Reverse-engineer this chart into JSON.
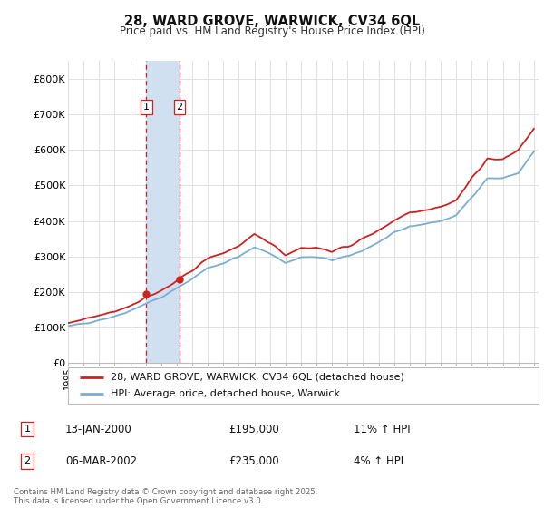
{
  "title": "28, WARD GROVE, WARWICK, CV34 6QL",
  "subtitle": "Price paid vs. HM Land Registry's House Price Index (HPI)",
  "ylim": [
    0,
    850000
  ],
  "yticks": [
    0,
    100000,
    200000,
    300000,
    400000,
    500000,
    600000,
    700000,
    800000
  ],
  "ytick_labels": [
    "£0",
    "£100K",
    "£200K",
    "£300K",
    "£400K",
    "£500K",
    "£600K",
    "£700K",
    "£800K"
  ],
  "legend_line1": "28, WARD GROVE, WARWICK, CV34 6QL (detached house)",
  "legend_line2": "HPI: Average price, detached house, Warwick",
  "transaction1_date": "13-JAN-2000",
  "transaction1_price": "£195,000",
  "transaction1_hpi": "11% ↑ HPI",
  "transaction2_date": "06-MAR-2002",
  "transaction2_price": "£235,000",
  "transaction2_hpi": "4% ↑ HPI",
  "footer": "Contains HM Land Registry data © Crown copyright and database right 2025.\nThis data is licensed under the Open Government Licence v3.0.",
  "red_color": "#cc2222",
  "blue_color": "#7aadd4",
  "shade_color": "#d0e0f0",
  "transaction1_x": 2000.04,
  "transaction2_x": 2002.18,
  "bg_color": "#ffffff",
  "grid_color": "#e0e0e0",
  "hpi_years": [
    1995.0,
    1995.1,
    1995.2,
    1995.3,
    1995.4,
    1995.5,
    1995.6,
    1995.7,
    1995.8,
    1995.9,
    1996.0,
    1996.1,
    1996.2,
    1996.3,
    1996.4,
    1996.5,
    1996.6,
    1996.7,
    1996.8,
    1996.9,
    1997.0,
    1997.1,
    1997.2,
    1997.3,
    1997.4,
    1997.5,
    1997.6,
    1997.7,
    1997.8,
    1997.9,
    1998.0,
    1998.1,
    1998.2,
    1998.3,
    1998.4,
    1998.5,
    1998.6,
    1998.7,
    1998.8,
    1998.9,
    1999.0,
    1999.1,
    1999.2,
    1999.3,
    1999.4,
    1999.5,
    1999.6,
    1999.7,
    1999.8,
    1999.9,
    2000.0,
    2000.1,
    2000.2,
    2000.3,
    2000.4,
    2000.5,
    2000.6,
    2000.7,
    2000.8,
    2000.9,
    2001.0,
    2001.1,
    2001.2,
    2001.3,
    2001.4,
    2001.5,
    2001.6,
    2001.7,
    2001.8,
    2001.9,
    2002.0,
    2002.1,
    2002.2,
    2002.3,
    2002.4,
    2002.5,
    2002.6,
    2002.7,
    2002.8,
    2002.9,
    2003.0,
    2003.1,
    2003.2,
    2003.3,
    2003.4,
    2003.5,
    2003.6,
    2003.7,
    2003.8,
    2003.9,
    2004.0,
    2004.1,
    2004.2,
    2004.3,
    2004.4,
    2004.5,
    2004.6,
    2004.7,
    2004.8,
    2004.9,
    2005.0,
    2005.1,
    2005.2,
    2005.3,
    2005.4,
    2005.5,
    2005.6,
    2005.7,
    2005.8,
    2005.9,
    2006.0,
    2006.1,
    2006.2,
    2006.3,
    2006.4,
    2006.5,
    2006.6,
    2006.7,
    2006.8,
    2006.9,
    2007.0,
    2007.1,
    2007.2,
    2007.3,
    2007.4,
    2007.5,
    2007.6,
    2007.7,
    2007.8,
    2007.9,
    2008.0,
    2008.1,
    2008.2,
    2008.3,
    2008.4,
    2008.5,
    2008.6,
    2008.7,
    2008.8,
    2008.9,
    2009.0,
    2009.1,
    2009.2,
    2009.3,
    2009.4,
    2009.5,
    2009.6,
    2009.7,
    2009.8,
    2009.9,
    2010.0,
    2010.1,
    2010.2,
    2010.3,
    2010.4,
    2010.5,
    2010.6,
    2010.7,
    2010.8,
    2010.9,
    2011.0,
    2011.1,
    2011.2,
    2011.3,
    2011.4,
    2011.5,
    2011.6,
    2011.7,
    2011.8,
    2011.9,
    2012.0,
    2012.1,
    2012.2,
    2012.3,
    2012.4,
    2012.5,
    2012.6,
    2012.7,
    2012.8,
    2012.9,
    2013.0,
    2013.1,
    2013.2,
    2013.3,
    2013.4,
    2013.5,
    2013.6,
    2013.7,
    2013.8,
    2013.9,
    2014.0,
    2014.1,
    2014.2,
    2014.3,
    2014.4,
    2014.5,
    2014.6,
    2014.7,
    2014.8,
    2014.9,
    2015.0,
    2015.1,
    2015.2,
    2015.3,
    2015.4,
    2015.5,
    2015.6,
    2015.7,
    2015.8,
    2015.9,
    2016.0,
    2016.1,
    2016.2,
    2016.3,
    2016.4,
    2016.5,
    2016.6,
    2016.7,
    2016.8,
    2016.9,
    2017.0,
    2017.1,
    2017.2,
    2017.3,
    2017.4,
    2017.5,
    2017.6,
    2017.7,
    2017.8,
    2017.9,
    2018.0,
    2018.1,
    2018.2,
    2018.3,
    2018.4,
    2018.5,
    2018.6,
    2018.7,
    2018.8,
    2018.9,
    2019.0,
    2019.1,
    2019.2,
    2019.3,
    2019.4,
    2019.5,
    2019.6,
    2019.7,
    2019.8,
    2019.9,
    2020.0,
    2020.1,
    2020.2,
    2020.3,
    2020.4,
    2020.5,
    2020.6,
    2020.7,
    2020.8,
    2020.9,
    2021.0,
    2021.1,
    2021.2,
    2021.3,
    2021.4,
    2021.5,
    2021.6,
    2021.7,
    2021.8,
    2021.9,
    2022.0,
    2022.1,
    2022.2,
    2022.3,
    2022.4,
    2022.5,
    2022.6,
    2022.7,
    2022.8,
    2022.9,
    2023.0,
    2023.1,
    2023.2,
    2023.3,
    2023.4,
    2023.5,
    2023.6,
    2023.7,
    2023.8,
    2023.9,
    2024.0,
    2024.1,
    2024.2,
    2024.3,
    2024.4,
    2024.5,
    2024.6,
    2024.7,
    2024.8,
    2024.9,
    2025.0
  ]
}
